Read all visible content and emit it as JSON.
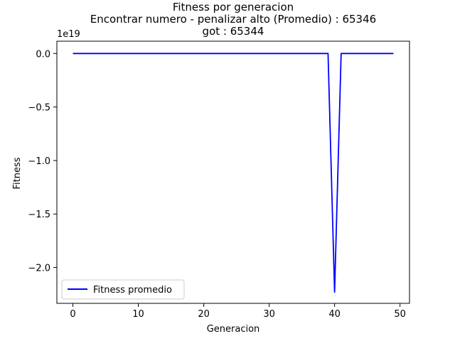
{
  "chart_data": {
    "type": "line",
    "title": [
      "Fitness por generacion",
      "Encontrar numero - penalizar alto (Promedio) : 65346",
      "got : 65344"
    ],
    "xlabel": "Generacion",
    "ylabel": "Fitness",
    "y_scale_label": "1e19",
    "xlim": [
      -2.45,
      51.45
    ],
    "ylim": [
      -2.335,
      0.115
    ],
    "x_ticks": [
      0,
      10,
      20,
      30,
      40,
      50
    ],
    "y_ticks": [
      0.0,
      -0.5,
      -1.0,
      -1.5,
      -2.0
    ],
    "y_tick_labels": [
      "0.0",
      "−0.5",
      "−1.0",
      "−1.5",
      "−2.0"
    ],
    "grid": false,
    "legend_position": "lower-left",
    "series": [
      {
        "name": "Fitness promedio",
        "color": "#0000ff",
        "x": [
          0,
          1,
          2,
          3,
          4,
          5,
          6,
          7,
          8,
          9,
          10,
          11,
          12,
          13,
          14,
          15,
          16,
          17,
          18,
          19,
          20,
          21,
          22,
          23,
          24,
          25,
          26,
          27,
          28,
          29,
          30,
          31,
          32,
          33,
          34,
          35,
          36,
          37,
          38,
          39,
          40,
          41,
          42,
          43,
          44,
          45,
          46,
          47,
          48,
          49
        ],
        "values": [
          0,
          0,
          0,
          0,
          0,
          0,
          0,
          0,
          0,
          0,
          0,
          0,
          0,
          0,
          0,
          0,
          0,
          0,
          0,
          0,
          0,
          0,
          0,
          0,
          0,
          0,
          0,
          0,
          0,
          0,
          0,
          0,
          0,
          0,
          0,
          0,
          0,
          0,
          0,
          0,
          -2.23,
          0,
          0,
          0,
          0,
          0,
          0,
          0,
          0,
          0
        ]
      }
    ]
  }
}
